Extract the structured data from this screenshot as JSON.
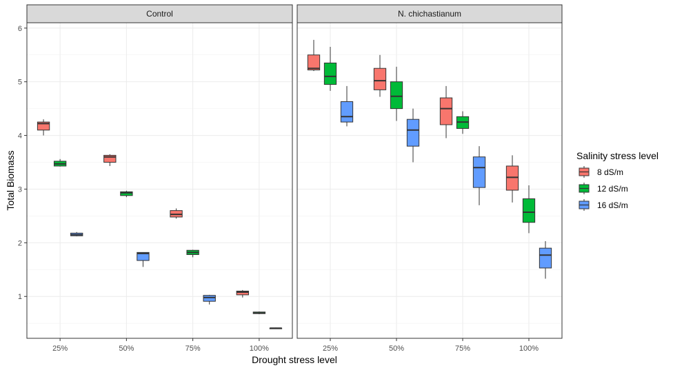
{
  "chart_data": {
    "type": "boxplot",
    "xlabel": "Drought stress level",
    "ylabel": "Total Biomass",
    "categories": [
      "25%",
      "50%",
      "75%",
      "100%"
    ],
    "y_ticks": [
      1,
      2,
      3,
      4,
      5,
      6
    ],
    "ylim": [
      0.22,
      6.1
    ],
    "grid": true,
    "legend": {
      "title": "Salinity stress level",
      "position": "right",
      "items": [
        {
          "label": "8 dS/m",
          "color": "#F8766D"
        },
        {
          "label": "12 dS/m",
          "color": "#00BA38"
        },
        {
          "label": "16 dS/m",
          "color": "#619CFF"
        }
      ]
    },
    "panels": [
      {
        "title": "Control",
        "groups": [
          {
            "category": "25%",
            "series": "8 dS/m",
            "min": 4.0,
            "q1": 4.1,
            "median": 4.22,
            "q3": 4.25,
            "max": 4.3
          },
          {
            "category": "25%",
            "series": "12 dS/m",
            "min": 3.42,
            "q1": 3.43,
            "median": 3.47,
            "q3": 3.52,
            "max": 3.56
          },
          {
            "category": "25%",
            "series": "16 dS/m",
            "min": 2.12,
            "q1": 2.13,
            "median": 2.15,
            "q3": 2.18,
            "max": 2.2
          },
          {
            "category": "50%",
            "series": "8 dS/m",
            "min": 3.43,
            "q1": 3.5,
            "median": 3.6,
            "q3": 3.63,
            "max": 3.65
          },
          {
            "category": "50%",
            "series": "12 dS/m",
            "min": 2.85,
            "q1": 2.88,
            "median": 2.93,
            "q3": 2.95,
            "max": 2.97
          },
          {
            "category": "50%",
            "series": "16 dS/m",
            "min": 1.55,
            "q1": 1.67,
            "median": 1.8,
            "q3": 1.82,
            "max": 1.82
          },
          {
            "category": "75%",
            "series": "8 dS/m",
            "min": 2.45,
            "q1": 2.48,
            "median": 2.53,
            "q3": 2.6,
            "max": 2.64
          },
          {
            "category": "75%",
            "series": "12 dS/m",
            "min": 1.73,
            "q1": 1.78,
            "median": 1.82,
            "q3": 1.86,
            "max": 1.87
          },
          {
            "category": "75%",
            "series": "16 dS/m",
            "min": 0.85,
            "q1": 0.91,
            "median": 0.98,
            "q3": 1.02,
            "max": 1.03
          },
          {
            "category": "100%",
            "series": "8 dS/m",
            "min": 0.98,
            "q1": 1.03,
            "median": 1.08,
            "q3": 1.1,
            "max": 1.12
          },
          {
            "category": "100%",
            "series": "12 dS/m",
            "min": 0.67,
            "q1": 0.68,
            "median": 0.69,
            "q3": 0.71,
            "max": 0.72
          },
          {
            "category": "100%",
            "series": "16 dS/m",
            "min": 0.4,
            "q1": 0.4,
            "median": 0.41,
            "q3": 0.41,
            "max": 0.42
          }
        ]
      },
      {
        "title": "N. chichastianum",
        "groups": [
          {
            "category": "25%",
            "series": "8 dS/m",
            "min": 5.2,
            "q1": 5.22,
            "median": 5.25,
            "q3": 5.5,
            "max": 5.78
          },
          {
            "category": "25%",
            "series": "12 dS/m",
            "min": 4.83,
            "q1": 4.95,
            "median": 5.1,
            "q3": 5.35,
            "max": 5.65
          },
          {
            "category": "25%",
            "series": "16 dS/m",
            "min": 4.17,
            "q1": 4.25,
            "median": 4.35,
            "q3": 4.63,
            "max": 4.92
          },
          {
            "category": "50%",
            "series": "8 dS/m",
            "min": 4.72,
            "q1": 4.85,
            "median": 5.02,
            "q3": 5.25,
            "max": 5.5
          },
          {
            "category": "50%",
            "series": "12 dS/m",
            "min": 4.27,
            "q1": 4.5,
            "median": 4.73,
            "q3": 5.0,
            "max": 5.28
          },
          {
            "category": "50%",
            "series": "16 dS/m",
            "min": 3.5,
            "q1": 3.8,
            "median": 4.1,
            "q3": 4.3,
            "max": 4.5
          },
          {
            "category": "75%",
            "series": "8 dS/m",
            "min": 3.95,
            "q1": 4.2,
            "median": 4.5,
            "q3": 4.7,
            "max": 4.92
          },
          {
            "category": "75%",
            "series": "12 dS/m",
            "min": 4.03,
            "q1": 4.13,
            "median": 4.25,
            "q3": 4.35,
            "max": 4.45
          },
          {
            "category": "75%",
            "series": "16 dS/m",
            "min": 2.7,
            "q1": 3.03,
            "median": 3.4,
            "q3": 3.6,
            "max": 3.8
          },
          {
            "category": "100%",
            "series": "8 dS/m",
            "min": 2.75,
            "q1": 2.98,
            "median": 3.22,
            "q3": 3.43,
            "max": 3.63
          },
          {
            "category": "100%",
            "series": "12 dS/m",
            "min": 2.18,
            "q1": 2.38,
            "median": 2.57,
            "q3": 2.82,
            "max": 3.07
          },
          {
            "category": "100%",
            "series": "16 dS/m",
            "min": 1.33,
            "q1": 1.53,
            "median": 1.77,
            "q3": 1.9,
            "max": 2.03
          }
        ]
      }
    ]
  }
}
